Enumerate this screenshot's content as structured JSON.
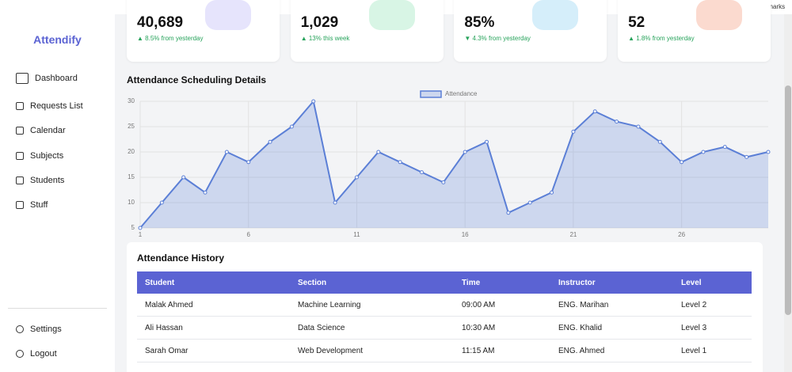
{
  "browser": {
    "bookmarks": "All Bookmarks"
  },
  "sidebar": {
    "brand": "Attendify",
    "nav": [
      "Dashboard",
      "Requests List",
      "Calendar",
      "Subjects",
      "Students",
      "Stuff"
    ],
    "footer_nav": [
      "Settings",
      "Logout"
    ]
  },
  "cards": [
    {
      "value": "40,689",
      "change": "▲ 8.5% from yesterday",
      "icon_color": "#e6e4fc"
    },
    {
      "value": "1,029",
      "change": "▲ 13% this week",
      "icon_color": "#d8f5e5"
    },
    {
      "value": "85%",
      "change": "▼ 4.3% from yesterday",
      "icon_color": "#d5eefa"
    },
    {
      "value": "52",
      "change": "▲ 1.8% from yesterday",
      "icon_color": "#fbdacf"
    }
  ],
  "chart_data": {
    "type": "line",
    "title": "Attendance Scheduling Details",
    "x": [
      1,
      2,
      3,
      4,
      5,
      6,
      7,
      8,
      9,
      10,
      11,
      12,
      13,
      14,
      15,
      16,
      17,
      18,
      19,
      20,
      21,
      22,
      23,
      24,
      25,
      26,
      27,
      28,
      29,
      30
    ],
    "series": [
      {
        "name": "Attendance",
        "color": "#5b7fd6",
        "values": [
          5,
          10,
          15,
          12,
          20,
          18,
          22,
          25,
          30,
          10,
          15,
          20,
          18,
          16,
          14,
          20,
          22,
          8,
          10,
          12,
          24,
          28,
          26,
          25,
          22,
          18,
          20,
          21,
          19,
          20
        ]
      }
    ],
    "xlim": [
      1,
      30
    ],
    "xticks": [
      1,
      6,
      11,
      16,
      21,
      26
    ],
    "ylim": [
      5,
      30
    ],
    "yticks": [
      5,
      10,
      15,
      20,
      25,
      30
    ],
    "grid": true,
    "legend": "top",
    "area": true
  },
  "table": {
    "title": "Attendance History",
    "columns": [
      "Student",
      "Section",
      "Time",
      "Instructor",
      "Level"
    ],
    "rows": [
      [
        "Malak Ahmed",
        "Machine Learning",
        "09:00 AM",
        "ENG. Marihan",
        "Level 2"
      ],
      [
        "Ali Hassan",
        "Data Science",
        "10:30 AM",
        "ENG. Khalid",
        "Level 3"
      ],
      [
        "Sarah Omar",
        "Web Development",
        "11:15 AM",
        "ENG. Ahmed",
        "Level 1"
      ]
    ]
  }
}
